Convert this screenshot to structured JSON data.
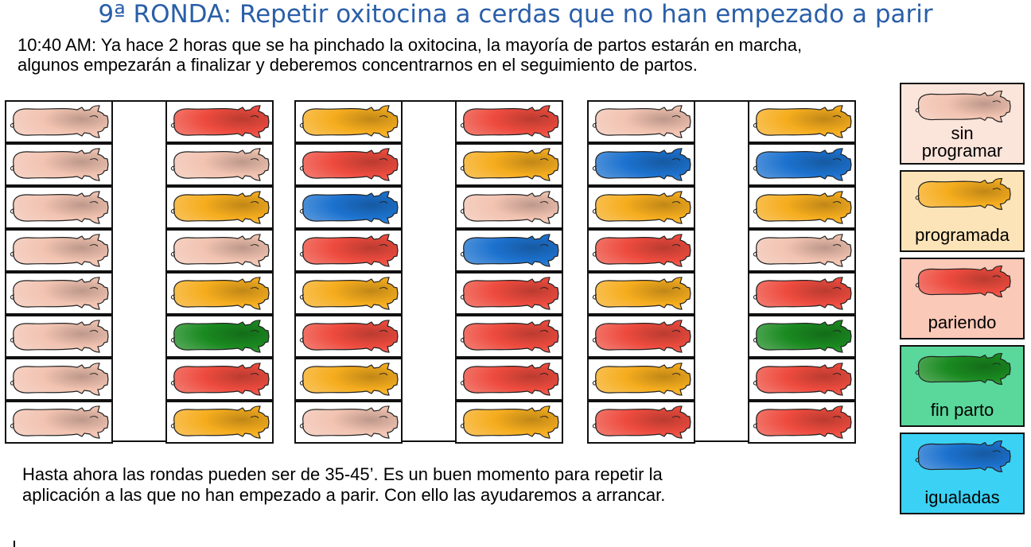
{
  "title": "9ª RONDA: Repetir oxitocina a cerdas que no han empezado a parir",
  "intro": {
    "line1": "10:40 AM: Ya hace 2 horas que se ha pinchado la oxitocina, la mayoría de partos estarán en marcha,",
    "line2": "algunos empezarán a finalizar y deberemos concentrarnos en el seguimiento de partos."
  },
  "bottom_note": {
    "line1": "Hasta ahora las rondas pueden ser de 35-45’. Es un buen momento para repetir la",
    "line2": "aplicación a las que no han empezado a parir. Con ello las ayudaremos a arrancar."
  },
  "legend": [
    {
      "key": "sin_programar",
      "label_lines": [
        "sin",
        "programar"
      ],
      "bg": "#fbe4da",
      "pig_fill": "#f2c3b1"
    },
    {
      "key": "programada",
      "label_lines": [
        "programada"
      ],
      "bg": "#fde4b8",
      "pig_fill": "#f6ad1e"
    },
    {
      "key": "pariendo",
      "label_lines": [
        "pariendo"
      ],
      "bg": "#fbc9b8",
      "pig_fill": "#ee4b3e"
    },
    {
      "key": "fin_parto",
      "label_lines": [
        "fin parto"
      ],
      "bg": "#5ad79b",
      "pig_fill": "#1a8a20"
    },
    {
      "key": "igualadas",
      "label_lines": [
        "igualadas"
      ],
      "bg": "#3ad1f4",
      "pig_fill": "#1c72cf"
    }
  ],
  "colors": {
    "sin_programar": "#f2c3b1",
    "programada": "#f6ad1e",
    "pariendo": "#ee4b3e",
    "fin_parto": "#1a8a20",
    "igualadas": "#1c72cf",
    "title_blue": "#2a5fa8"
  },
  "pens": [
    {
      "left": [
        "sin_programar",
        "sin_programar",
        "sin_programar",
        "sin_programar",
        "sin_programar",
        "sin_programar",
        "sin_programar",
        "sin_programar"
      ],
      "right": [
        "pariendo",
        "sin_programar",
        "programada",
        "sin_programar",
        "programada",
        "fin_parto",
        "pariendo",
        "programada"
      ]
    },
    {
      "left": [
        "programada",
        "pariendo",
        "igualadas",
        "pariendo",
        "programada",
        "pariendo",
        "programada",
        "sin_programar"
      ],
      "right": [
        "pariendo",
        "programada",
        "sin_programar",
        "igualadas",
        "pariendo",
        "pariendo",
        "pariendo",
        "programada"
      ]
    },
    {
      "left": [
        "sin_programar",
        "igualadas",
        "programada",
        "pariendo",
        "programada",
        "pariendo",
        "programada",
        "pariendo"
      ],
      "right": [
        "programada",
        "igualadas",
        "programada",
        "sin_programar",
        "pariendo",
        "fin_parto",
        "pariendo",
        "pariendo"
      ]
    }
  ]
}
